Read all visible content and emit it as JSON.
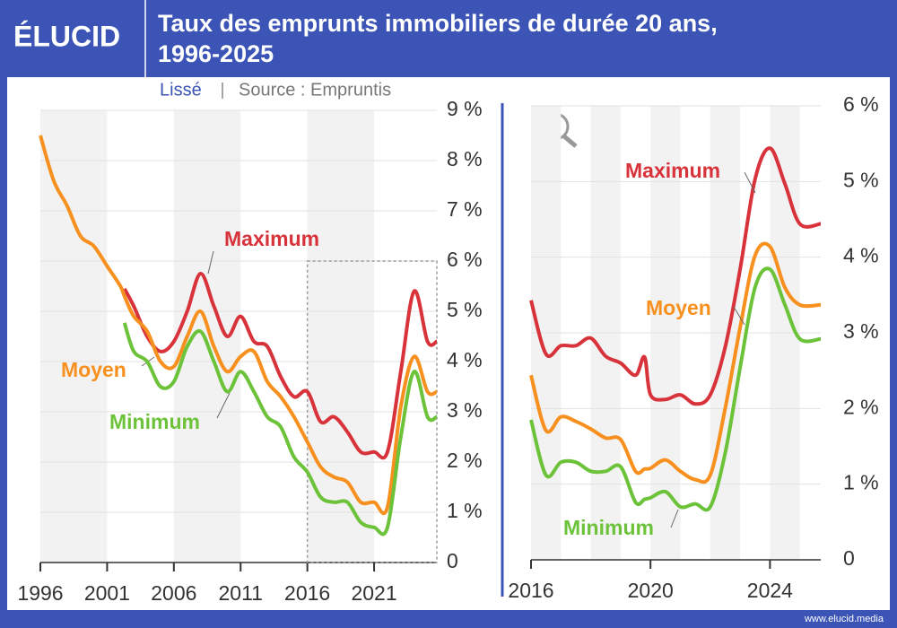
{
  "header": {
    "logo": "ÉLUCID",
    "title": [
      "Taux des emprunts immobiliers de durée 20 ans,",
      "1996-2025"
    ],
    "subtitle": "Lissé",
    "source": "Source : Empruntis"
  },
  "chart_data": [
    {
      "type": "line",
      "x": [
        1996,
        1997,
        1998,
        1999,
        2000,
        2001,
        2002,
        2002.3,
        2003,
        2004,
        2005,
        2006,
        2007,
        2008,
        2009,
        2010,
        2011,
        2012,
        2013,
        2014,
        2015,
        2016,
        2017,
        2018,
        2019,
        2020,
        2021,
        2022,
        2023,
        2024,
        2025,
        2025.7
      ],
      "series": [
        {
          "name": "Maximum",
          "color": "#d8323a",
          "values": [
            null,
            null,
            null,
            null,
            null,
            null,
            null,
            5.45,
            5.1,
            4.5,
            4.2,
            4.4,
            5.0,
            5.75,
            5.1,
            4.5,
            4.9,
            4.4,
            4.3,
            3.7,
            3.3,
            3.4,
            2.8,
            2.9,
            2.6,
            2.2,
            2.2,
            2.2,
            3.8,
            5.4,
            4.4,
            4.4
          ]
        },
        {
          "name": "Moyen",
          "color": "#f7901e",
          "values": [
            8.5,
            7.6,
            7.1,
            6.5,
            6.3,
            5.9,
            5.5,
            5.3,
            4.9,
            4.6,
            4.0,
            3.9,
            4.5,
            5.0,
            4.3,
            3.8,
            4.1,
            4.2,
            3.6,
            3.3,
            2.9,
            2.4,
            1.9,
            1.7,
            1.6,
            1.2,
            1.2,
            1.1,
            3.1,
            4.1,
            3.4,
            3.4
          ]
        },
        {
          "name": "Minimum",
          "color": "#6cc33a",
          "values": [
            null,
            null,
            null,
            null,
            null,
            null,
            null,
            4.77,
            4.2,
            4.0,
            3.5,
            3.6,
            4.3,
            4.6,
            4.0,
            3.4,
            3.8,
            3.4,
            2.9,
            2.7,
            2.1,
            1.8,
            1.3,
            1.2,
            1.2,
            0.8,
            0.7,
            0.7,
            2.5,
            3.8,
            2.9,
            2.9
          ]
        }
      ],
      "xlim": [
        1996,
        2025.7
      ],
      "xticks": [
        1996,
        2001,
        2006,
        2011,
        2016,
        2021
      ],
      "ylim": [
        0,
        9
      ],
      "yticks": [
        0,
        {
          "value": 1,
          "label": "1 %"
        },
        {
          "value": 2,
          "label": "2 %"
        },
        {
          "value": 3,
          "label": "3 %"
        },
        {
          "value": 4,
          "label": "4 %"
        },
        {
          "value": 5,
          "label": "5 %"
        },
        {
          "value": 6,
          "label": "6 %"
        },
        {
          "value": 7,
          "label": "7 %"
        },
        {
          "value": 8,
          "label": "8 %"
        },
        {
          "value": 9,
          "label": "9 %"
        }
      ],
      "grid": true
    },
    {
      "type": "line",
      "x": [
        2016,
        2016.5,
        2017,
        2017.5,
        2018,
        2018.5,
        2019,
        2019.5,
        2019.8,
        2020,
        2020.5,
        2021,
        2021.5,
        2022,
        2022.5,
        2023,
        2023.5,
        2024,
        2024.5,
        2025,
        2025.7
      ],
      "series": [
        {
          "name": "Maximum",
          "color": "#d8323a",
          "values": [
            3.43,
            2.72,
            2.83,
            2.83,
            2.93,
            2.69,
            2.6,
            2.44,
            2.68,
            2.18,
            2.12,
            2.18,
            2.06,
            2.18,
            2.81,
            3.84,
            5.03,
            5.44,
            4.97,
            4.44,
            4.44
          ]
        },
        {
          "name": "Moyen",
          "color": "#f7901e",
          "values": [
            2.44,
            1.71,
            1.89,
            1.83,
            1.73,
            1.61,
            1.59,
            1.17,
            1.2,
            1.21,
            1.32,
            1.17,
            1.06,
            1.12,
            2.0,
            3.07,
            4.02,
            4.14,
            3.6,
            3.37,
            3.37
          ]
        },
        {
          "name": "Minimum",
          "color": "#6cc33a",
          "values": [
            1.85,
            1.12,
            1.29,
            1.29,
            1.17,
            1.17,
            1.23,
            0.76,
            0.8,
            0.82,
            0.9,
            0.7,
            0.74,
            0.7,
            1.41,
            2.54,
            3.6,
            3.84,
            3.37,
            2.92,
            2.92
          ]
        }
      ],
      "xlim": [
        2016,
        2025.7
      ],
      "xticks": [
        2016,
        2020,
        2024
      ],
      "ylim": [
        0,
        6
      ],
      "yticks": [
        0,
        {
          "value": 1,
          "label": "1 %"
        },
        {
          "value": 2,
          "label": "2 %"
        },
        {
          "value": 3,
          "label": "3 %"
        },
        {
          "value": 4,
          "label": "4 %"
        },
        {
          "value": 5,
          "label": "5 %"
        },
        {
          "value": 6,
          "label": "6 %"
        }
      ],
      "grid": true
    }
  ],
  "footer": "www.elucid.media"
}
